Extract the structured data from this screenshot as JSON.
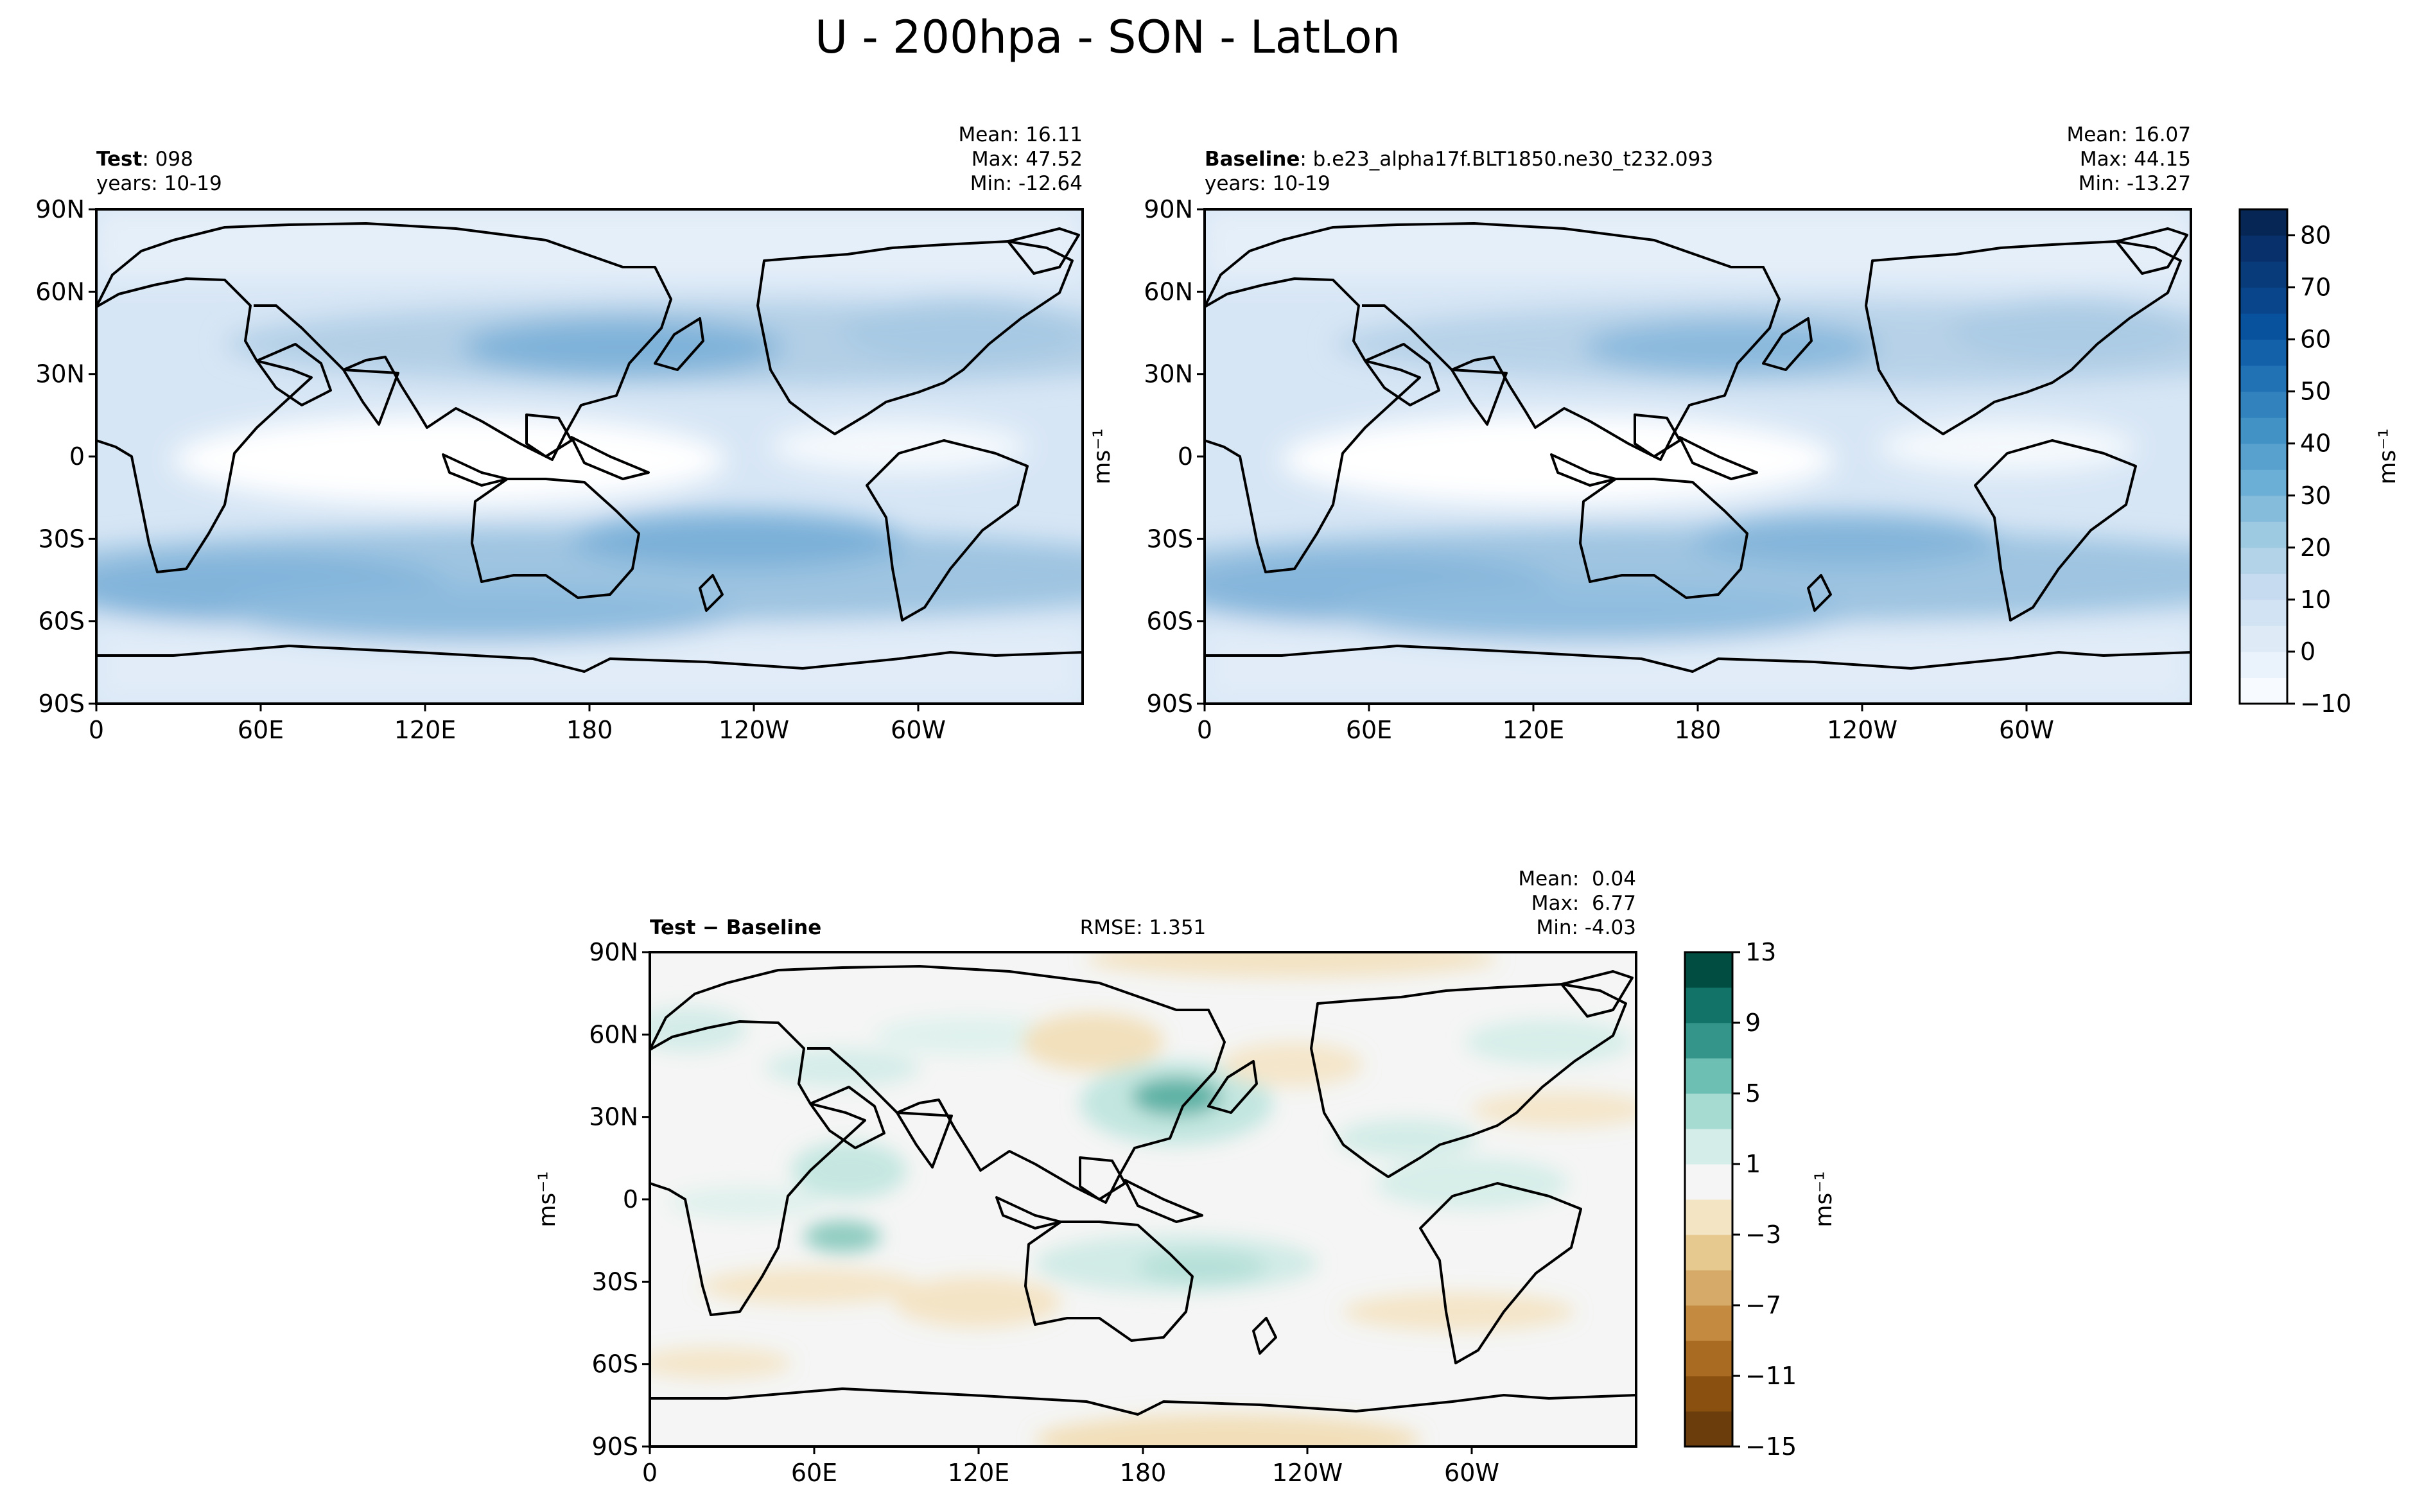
{
  "figure": {
    "title": "U - 200hpa - SON - LatLon"
  },
  "chart_data": [
    {
      "type": "heatmap",
      "panel": "test",
      "label_bold": "Test",
      "label_rest": ": 098",
      "years": "years: 10-19",
      "stats": [
        "Mean: 16.11",
        "Max: 47.52",
        "Min: -12.64"
      ],
      "xticks": [
        "0",
        "60E",
        "120E",
        "180",
        "120W",
        "60W"
      ],
      "yticks": [
        "90N",
        "60N",
        "30N",
        "0",
        "30S",
        "60S",
        "90S"
      ],
      "ylabel": "",
      "colormap": "Blues",
      "contour_levels": [
        -10,
        -5,
        0,
        5,
        10,
        15,
        20,
        25,
        30,
        35,
        40,
        45,
        50,
        55,
        60,
        65,
        70,
        75,
        80,
        85
      ],
      "field_summary": {
        "nh_jet_max_lat": 38,
        "sh_jet_max_lat": -32,
        "tropical_min_lon": 90
      }
    },
    {
      "type": "heatmap",
      "panel": "baseline",
      "label_bold": "Baseline",
      "label_rest": ": b.e23_alpha17f.BLT1850.ne30_t232.093",
      "years": "years: 10-19",
      "stats": [
        "Mean: 16.07",
        "Max: 44.15",
        "Min: -13.27"
      ],
      "xticks": [
        "0",
        "60E",
        "120E",
        "180",
        "120W",
        "60W"
      ],
      "yticks": [
        "90N",
        "60N",
        "30N",
        "0",
        "30S",
        "60S",
        "90S"
      ],
      "ylabel": "ms⁻¹",
      "colormap": "Blues",
      "colorbar": {
        "ticks": [
          "80",
          "70",
          "60",
          "50",
          "40",
          "30",
          "20",
          "10",
          "0",
          "−10"
        ],
        "label": "ms⁻¹",
        "vmin": -10,
        "vmax": 85
      }
    },
    {
      "type": "heatmap",
      "panel": "difference",
      "label_bold": "Test − Baseline",
      "rmse": "RMSE: 1.351",
      "stats": [
        "Mean:  0.04",
        "Max:  6.77",
        "Min: -4.03"
      ],
      "xticks": [
        "0",
        "60E",
        "120E",
        "180",
        "120W",
        "60W"
      ],
      "yticks": [
        "90N",
        "60N",
        "30N",
        "0",
        "30S",
        "60S",
        "90S"
      ],
      "ylabel": "ms⁻¹",
      "colormap": "BrBG",
      "colorbar": {
        "ticks": [
          "13",
          "9",
          "5",
          "1",
          "−3",
          "−7",
          "−11",
          "−15"
        ],
        "label": "ms⁻¹",
        "vmin": -15,
        "vmax": 13
      },
      "notable_anomaly": {
        "lon": 180,
        "lat": 38,
        "value": 6.77
      }
    }
  ]
}
